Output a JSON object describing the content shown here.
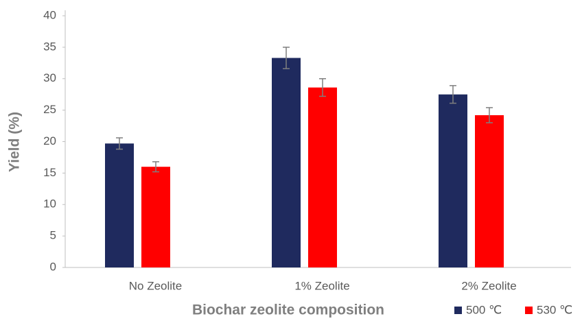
{
  "chart_data": {
    "type": "bar",
    "xlabel": "Biochar zeolite composition",
    "ylabel": "Yield (%)",
    "categories": [
      "No Zeolite",
      "1% Zeolite",
      "2% Zeolite"
    ],
    "series": [
      {
        "name": "500 ℃",
        "color": "#1f2a5e",
        "values": [
          19.7,
          33.3,
          27.5
        ],
        "errors": [
          0.9,
          1.7,
          1.4
        ]
      },
      {
        "name": "530 ℃",
        "color": "#ff0000",
        "values": [
          16.0,
          28.6,
          24.2
        ],
        "errors": [
          0.8,
          1.4,
          1.2
        ]
      }
    ],
    "ylim": [
      0,
      40
    ],
    "yticks": [
      0,
      5,
      10,
      15,
      20,
      25,
      30,
      35,
      40
    ],
    "grid": false,
    "legend": "bottom-right"
  }
}
